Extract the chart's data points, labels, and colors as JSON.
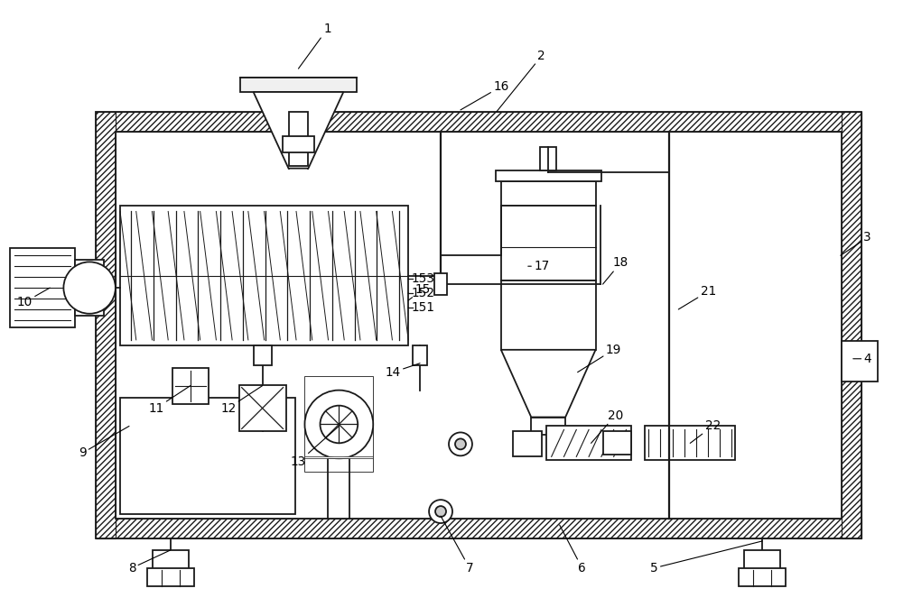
{
  "bg_color": "#ffffff",
  "lc": "#1a1a1a",
  "fig_w": 10.0,
  "fig_h": 6.83,
  "dpi": 100
}
